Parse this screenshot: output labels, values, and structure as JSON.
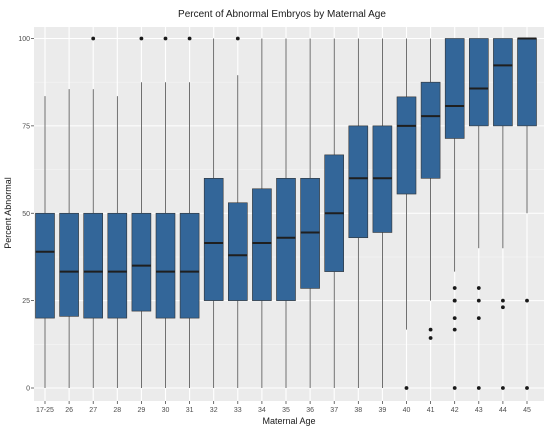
{
  "chart_data": {
    "type": "boxplot",
    "title": "Percent of Abnormal Embryos by Maternal Age",
    "xlabel": "Maternal Age",
    "ylabel": "Percent Abnormal",
    "ylim": [
      0,
      100
    ],
    "yticks": [
      0,
      25,
      50,
      75,
      100
    ],
    "grid": true,
    "fill_color": "#336699",
    "panel_color": "#ebebeb",
    "categories": [
      "17-25",
      "26",
      "27",
      "28",
      "29",
      "30",
      "31",
      "32",
      "33",
      "34",
      "35",
      "36",
      "37",
      "38",
      "39",
      "40",
      "41",
      "42",
      "43",
      "44",
      "45"
    ],
    "boxes": [
      {
        "min": 0,
        "q1": 20,
        "median": 39,
        "q3": 50,
        "max": 83.5,
        "outliers": []
      },
      {
        "min": 0,
        "q1": 20.5,
        "median": 33.3,
        "q3": 50,
        "max": 85.5,
        "outliers": []
      },
      {
        "min": 0,
        "q1": 20,
        "median": 33.3,
        "q3": 50,
        "max": 85.5,
        "outliers": [
          100
        ]
      },
      {
        "min": 0,
        "q1": 20,
        "median": 33.3,
        "q3": 50,
        "max": 83.5,
        "outliers": []
      },
      {
        "min": 0,
        "q1": 22,
        "median": 35,
        "q3": 50,
        "max": 87.5,
        "outliers": [
          100
        ]
      },
      {
        "min": 0,
        "q1": 20,
        "median": 33.3,
        "q3": 50,
        "max": 87.5,
        "outliers": [
          100
        ]
      },
      {
        "min": 0,
        "q1": 20,
        "median": 33.3,
        "q3": 50,
        "max": 87.5,
        "outliers": [
          100
        ]
      },
      {
        "min": 0,
        "q1": 25,
        "median": 41.5,
        "q3": 60,
        "max": 100,
        "outliers": []
      },
      {
        "min": 0,
        "q1": 25,
        "median": 38,
        "q3": 53,
        "max": 89.5,
        "outliers": [
          100
        ]
      },
      {
        "min": 0,
        "q1": 25,
        "median": 41.5,
        "q3": 57,
        "max": 100,
        "outliers": []
      },
      {
        "min": 0,
        "q1": 25,
        "median": 43,
        "q3": 60,
        "max": 100,
        "outliers": []
      },
      {
        "min": 0,
        "q1": 28.5,
        "median": 44.5,
        "q3": 60,
        "max": 100,
        "outliers": []
      },
      {
        "min": 0,
        "q1": 33.3,
        "median": 50,
        "q3": 66.7,
        "max": 100,
        "outliers": []
      },
      {
        "min": 0,
        "q1": 43,
        "median": 60,
        "q3": 75,
        "max": 100,
        "outliers": []
      },
      {
        "min": 0,
        "q1": 44.5,
        "median": 60,
        "q3": 75,
        "max": 100,
        "outliers": []
      },
      {
        "min": 16.7,
        "q1": 55.5,
        "median": 75,
        "q3": 83.3,
        "max": 100,
        "outliers": [
          0
        ]
      },
      {
        "min": 25,
        "q1": 60,
        "median": 77.8,
        "q3": 87.5,
        "max": 100,
        "outliers": [
          16.7,
          14.3
        ]
      },
      {
        "min": 33.3,
        "q1": 71.4,
        "median": 80.7,
        "q3": 100,
        "max": 100,
        "outliers": [
          28.6,
          25,
          25,
          20,
          16.7,
          0
        ]
      },
      {
        "min": 40,
        "q1": 75,
        "median": 85.7,
        "q3": 100,
        "max": 100,
        "outliers": [
          28.6,
          25,
          20,
          0
        ]
      },
      {
        "min": 40,
        "q1": 75,
        "median": 92.3,
        "q3": 100,
        "max": 100,
        "outliers": [
          25,
          23.1,
          0
        ]
      },
      {
        "min": 50,
        "q1": 75,
        "median": 100,
        "q3": 100,
        "max": 100,
        "outliers": [
          25,
          0
        ]
      }
    ]
  }
}
